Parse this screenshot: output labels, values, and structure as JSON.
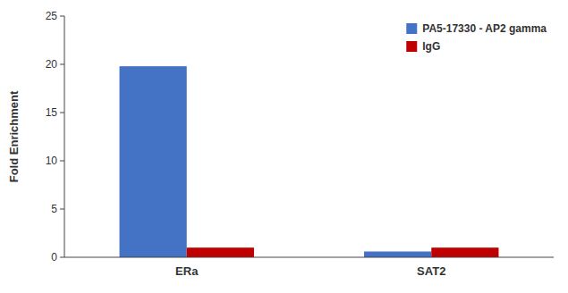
{
  "chart_data": {
    "type": "bar",
    "categories": [
      "ERa",
      "SAT2"
    ],
    "series": [
      {
        "name": "PA5-17330 - AP2 gamma",
        "color": "#4472C4",
        "values": [
          19.8,
          0.6
        ]
      },
      {
        "name": "IgG",
        "color": "#C00000",
        "values": [
          1.0,
          1.0
        ]
      }
    ],
    "ylabel": "Fold Enrichment",
    "ylim": [
      0,
      25
    ],
    "yticks": [
      0,
      5,
      10,
      15,
      20,
      25
    ],
    "grid": false,
    "legend": "upper right"
  }
}
